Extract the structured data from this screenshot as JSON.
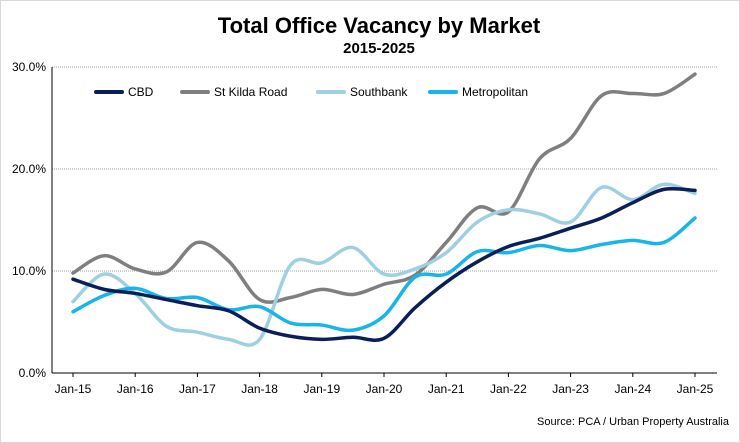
{
  "chart_data": {
    "type": "line",
    "title": "Total Office Vacancy by Market",
    "subtitle": "2015-2025",
    "source": "Source: PCA / Urban Property Australia",
    "xlabel": "",
    "ylabel": "",
    "x_ticks": [
      "Jan-15",
      "Jan-16",
      "Jan-17",
      "Jan-18",
      "Jan-19",
      "Jan-20",
      "Jan-21",
      "Jan-22",
      "Jan-23",
      "Jan-24",
      "Jan-25"
    ],
    "y_ticks": [
      "0.0%",
      "10.0%",
      "20.0%",
      "30.0%"
    ],
    "ylim": [
      0,
      30
    ],
    "grid": true,
    "legend_position": "top-left",
    "x": [
      2015.0,
      2015.5,
      2016.0,
      2016.5,
      2017.0,
      2017.5,
      2018.0,
      2018.5,
      2019.0,
      2019.5,
      2020.0,
      2020.5,
      2021.0,
      2021.5,
      2022.0,
      2022.5,
      2023.0,
      2023.5,
      2024.0,
      2024.5,
      2025.0
    ],
    "series": [
      {
        "name": "CBD",
        "color": "#0a1e5a",
        "values": [
          9.2,
          8.2,
          7.8,
          7.2,
          6.6,
          6.1,
          4.4,
          3.6,
          3.3,
          3.5,
          3.4,
          6.4,
          8.9,
          10.9,
          12.4,
          13.2,
          14.2,
          15.2,
          16.7,
          18.0,
          17.9
        ]
      },
      {
        "name": "St Kilda Road",
        "color": "#7f7f7f",
        "values": [
          9.8,
          11.5,
          10.2,
          9.9,
          12.8,
          11.0,
          7.2,
          7.4,
          8.2,
          7.7,
          8.7,
          9.6,
          12.8,
          16.2,
          15.8,
          21.0,
          23.0,
          27.2,
          27.4,
          27.4,
          29.3
        ]
      },
      {
        "name": "Southbank",
        "color": "#9fd0e2",
        "values": [
          7.0,
          9.7,
          7.8,
          4.6,
          4.0,
          3.3,
          3.3,
          10.6,
          10.8,
          12.3,
          9.7,
          10.2,
          11.8,
          14.8,
          16.0,
          15.6,
          14.8,
          18.2,
          17.0,
          18.5,
          17.6
        ]
      },
      {
        "name": "Metropolitan",
        "color": "#19b4e8",
        "values": [
          6.0,
          7.6,
          8.3,
          7.3,
          7.4,
          6.2,
          6.5,
          4.9,
          4.7,
          4.2,
          5.6,
          9.4,
          9.7,
          11.9,
          11.8,
          12.5,
          12.0,
          12.6,
          13.0,
          12.8,
          15.2
        ]
      }
    ]
  }
}
